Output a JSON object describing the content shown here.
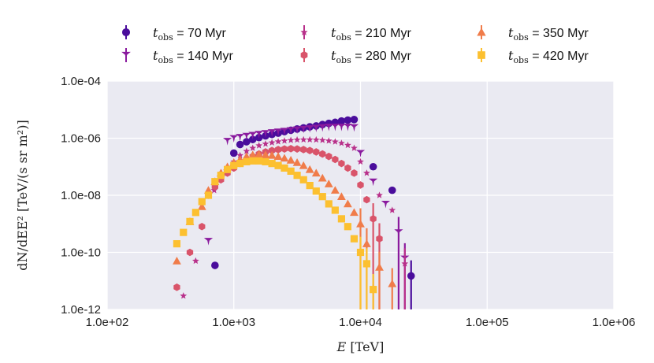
{
  "chart_data": {
    "type": "scatter",
    "xlabel": "E [TeV]",
    "ylabel": "dN/dEE² [TeV/(s sr m²)]",
    "xscale": "log",
    "yscale": "log",
    "xlim": [
      100,
      1000000
    ],
    "ylim": [
      1e-12,
      0.0001
    ],
    "grid": true,
    "legend_position": "top",
    "xticks": [
      100,
      1000,
      10000,
      100000,
      1000000
    ],
    "xtick_labels": [
      "1.0e+02",
      "1.0e+03",
      "1.0e+04",
      "1.0e+05",
      "1.0e+06"
    ],
    "yticks": [
      1e-12,
      1e-10,
      1e-08,
      1e-06,
      0.0001
    ],
    "ytick_labels": [
      "1.0e-12",
      "1.0e-10",
      "1.0e-08",
      "1.0e-06",
      "1.0e-04"
    ],
    "series": [
      {
        "name": "t_obs = 70 Myr",
        "legend_var": "t",
        "legend_sub": "obs",
        "legend_value": "= 70 Myr",
        "color": "#4a0d9c",
        "marker": "circle",
        "x": [
          710,
          1000,
          1120,
          1260,
          1410,
          1580,
          1780,
          2000,
          2240,
          2510,
          2820,
          3160,
          3550,
          3980,
          4470,
          5010,
          5620,
          6310,
          7080,
          7940,
          8910,
          12600,
          17800,
          25100
        ],
        "y": [
          3.5e-11,
          3e-07,
          6e-07,
          7.5e-07,
          9e-07,
          1.05e-06,
          1.2e-06,
          1.35e-06,
          1.5e-06,
          1.7e-06,
          1.9e-06,
          2.1e-06,
          2.3e-06,
          2.5e-06,
          2.7e-06,
          3e-06,
          3.3e-06,
          3.6e-06,
          4e-06,
          4.3e-06,
          4.5e-06,
          1e-07,
          1.5e-08,
          1.5e-11
        ]
      },
      {
        "name": "t_obs = 140 Myr",
        "legend_var": "t",
        "legend_sub": "obs",
        "legend_value": "= 140 Myr",
        "color": "#8a1a9e",
        "marker": "tri_down",
        "x": [
          630,
          890,
          1000,
          1120,
          1260,
          1410,
          1580,
          1780,
          2000,
          2240,
          2510,
          2820,
          3160,
          3550,
          3980,
          4470,
          5010,
          5620,
          6310,
          7080,
          7940,
          8910,
          10000,
          12600,
          15800,
          20000,
          22400
        ],
        "y": [
          2.5e-10,
          8e-07,
          1e-06,
          1.1e-06,
          1.2e-06,
          1.3e-06,
          1.4e-06,
          1.5e-06,
          1.6e-06,
          1.7e-06,
          1.8e-06,
          1.9e-06,
          2e-06,
          2.1e-06,
          2.2e-06,
          2.3e-06,
          2.4e-06,
          2.5e-06,
          2.5e-06,
          2.5e-06,
          2.5e-06,
          2.4e-06,
          3e-07,
          3e-08,
          5e-09,
          5e-10,
          6e-11
        ]
      },
      {
        "name": "t_obs = 210 Myr",
        "legend_var": "t",
        "legend_sub": "obs",
        "legend_value": "= 210 Myr",
        "color": "#b8308a",
        "marker": "star",
        "x": [
          400,
          500,
          700,
          800,
          1000,
          1120,
          1260,
          1410,
          1580,
          1780,
          2000,
          2240,
          2510,
          2820,
          3160,
          3550,
          3980,
          4470,
          5010,
          5620,
          6310,
          7080,
          7940,
          8910,
          10000,
          11200,
          14100,
          17800,
          22400
        ],
        "y": [
          3e-12,
          5e-11,
          1.5e-08,
          6e-08,
          1.5e-07,
          2.5e-07,
          3.5e-07,
          4.5e-07,
          5.5e-07,
          6.3e-07,
          7e-07,
          7.6e-07,
          8.1e-07,
          8.5e-07,
          8.8e-07,
          8.9e-07,
          8.9e-07,
          8.8e-07,
          8.5e-07,
          8.1e-07,
          7.5e-07,
          6.7e-07,
          5.7e-07,
          4.5e-07,
          1.5e-07,
          6e-08,
          1e-08,
          3e-09,
          4e-11
        ]
      },
      {
        "name": "t_obs = 280 Myr",
        "legend_var": "t",
        "legend_sub": "obs",
        "legend_value": "= 280 Myr",
        "color": "#d9546a",
        "marker": "hexagon",
        "x": [
          355,
          450,
          560,
          630,
          710,
          790,
          890,
          1000,
          1120,
          1260,
          1410,
          1580,
          1780,
          2000,
          2240,
          2510,
          2820,
          3160,
          3550,
          3980,
          4470,
          5010,
          5620,
          6310,
          7080,
          7940,
          8910,
          10000,
          11200,
          12600,
          14100
        ],
        "y": [
          6e-12,
          1e-10,
          8e-10,
          1e-08,
          2e-08,
          3.5e-08,
          6e-08,
          9e-08,
          1.3e-07,
          1.8e-07,
          2.3e-07,
          2.8e-07,
          3.3e-07,
          3.7e-07,
          4e-07,
          4.2e-07,
          4.3e-07,
          4.2e-07,
          4e-07,
          3.7e-07,
          3.3e-07,
          2.8e-07,
          2.3e-07,
          1.8e-07,
          1.3e-07,
          9e-08,
          6e-08,
          2.3e-08,
          7e-09,
          1.5e-09,
          3e-10
        ]
      },
      {
        "name": "t_obs = 350 Myr",
        "legend_var": "t",
        "legend_sub": "obs",
        "legend_value": "= 350 Myr",
        "color": "#f07c4a",
        "marker": "triangle_up",
        "x": [
          355,
          450,
          560,
          630,
          710,
          790,
          890,
          1000,
          1120,
          1260,
          1410,
          1580,
          1780,
          2000,
          2240,
          2510,
          2820,
          3160,
          3550,
          3980,
          4470,
          5010,
          5620,
          6310,
          7080,
          7940,
          8910,
          10000,
          11200,
          14100,
          17800
        ],
        "y": [
          5e-11,
          1.2e-09,
          4e-09,
          1.5e-08,
          3e-08,
          6e-08,
          1e-07,
          1.4e-07,
          1.8e-07,
          2.3e-07,
          2.6e-07,
          2.7e-07,
          2.6e-07,
          2.5e-07,
          2.3e-07,
          2e-07,
          1.7e-07,
          1.4e-07,
          1.1e-07,
          8e-08,
          6e-08,
          4e-08,
          2.5e-08,
          1.5e-08,
          9e-09,
          5e-09,
          2.5e-09,
          1e-09,
          2e-10,
          3e-11,
          8e-12
        ]
      },
      {
        "name": "t_obs = 420 Myr",
        "legend_var": "t",
        "legend_sub": "obs",
        "legend_value": "= 420 Myr",
        "color": "#fcc030",
        "marker": "square",
        "x": [
          355,
          400,
          450,
          500,
          560,
          630,
          710,
          790,
          890,
          1000,
          1120,
          1260,
          1410,
          1580,
          1780,
          2000,
          2240,
          2510,
          2820,
          3160,
          3550,
          3980,
          4470,
          5010,
          5620,
          6310,
          7080,
          7940,
          8910,
          10000,
          11200,
          12600
        ],
        "y": [
          2e-10,
          5e-10,
          1.2e-09,
          2.5e-09,
          6e-09,
          1e-08,
          3e-08,
          5e-08,
          8e-08,
          1.1e-07,
          1.3e-07,
          1.5e-07,
          1.6e-07,
          1.6e-07,
          1.5e-07,
          1.3e-07,
          1.1e-07,
          9e-08,
          7e-08,
          5e-08,
          3.5e-08,
          2.2e-08,
          1.4e-08,
          9e-09,
          5e-09,
          3e-09,
          1.5e-09,
          8e-10,
          3e-10,
          1e-10,
          4e-11,
          5e-12
        ]
      }
    ]
  }
}
